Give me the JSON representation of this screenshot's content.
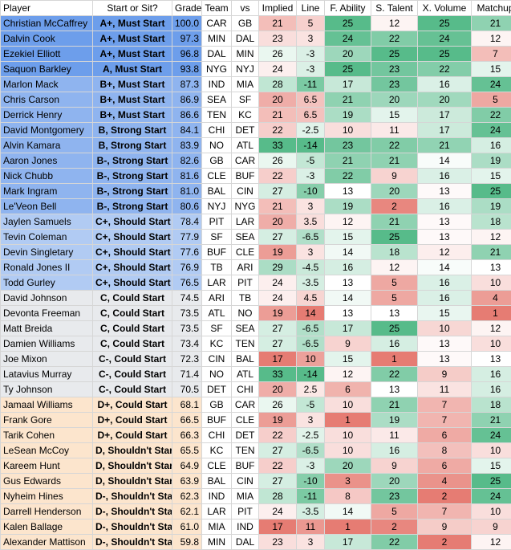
{
  "headers": [
    "Player",
    "Start or Sit?",
    "Grade",
    "Team",
    "vs",
    "Implied",
    "Line",
    "F. Ability",
    "S. Talent",
    "X. Volume",
    "Matchup"
  ],
  "tiers": {
    "A": "#6d9eeb",
    "B": "#8fb4ef",
    "C+": "#b1cbf3",
    "C": "#e8eaed",
    "D": "#fce5cd"
  },
  "rows": [
    [
      "Christian McCaffrey",
      "A+, Must Start",
      "100.0",
      "CAR",
      "GB",
      "21",
      "5",
      "25",
      "12",
      "25",
      "21"
    ],
    [
      "Dalvin Cook",
      "A+, Must Start",
      "97.3",
      "MIN",
      "DAL",
      "23",
      "3",
      "24",
      "22",
      "24",
      "12"
    ],
    [
      "Ezekiel Elliott",
      "A+, Must Start",
      "96.8",
      "DAL",
      "MIN",
      "26",
      "-3",
      "20",
      "25",
      "25",
      "7"
    ],
    [
      "Saquon Barkley",
      "A, Must Start",
      "93.8",
      "NYG",
      "NYJ",
      "24",
      "-3",
      "25",
      "23",
      "22",
      "15"
    ],
    [
      "Marlon Mack",
      "B+, Must Start",
      "87.3",
      "IND",
      "MIA",
      "28",
      "-11",
      "17",
      "23",
      "16",
      "24"
    ],
    [
      "Chris Carson",
      "B+, Must Start",
      "86.9",
      "SEA",
      "SF",
      "20",
      "6.5",
      "21",
      "20",
      "20",
      "5"
    ],
    [
      "Derrick Henry",
      "B+, Must Start",
      "86.6",
      "TEN",
      "KC",
      "21",
      "6.5",
      "19",
      "15",
      "17",
      "22"
    ],
    [
      "David Montgomery",
      "B, Strong Start",
      "84.1",
      "CHI",
      "DET",
      "22",
      "-2.5",
      "10",
      "11",
      "17",
      "24"
    ],
    [
      "Alvin Kamara",
      "B, Strong Start",
      "83.9",
      "NO",
      "ATL",
      "33",
      "-14",
      "23",
      "22",
      "21",
      "16"
    ],
    [
      "Aaron Jones",
      "B-, Strong Start",
      "82.6",
      "GB",
      "CAR",
      "26",
      "-5",
      "21",
      "21",
      "14",
      "19"
    ],
    [
      "Nick Chubb",
      "B-, Strong Start",
      "81.6",
      "CLE",
      "BUF",
      "22",
      "-3",
      "22",
      "9",
      "16",
      "15"
    ],
    [
      "Mark Ingram",
      "B-, Strong Start",
      "81.0",
      "BAL",
      "CIN",
      "27",
      "-10",
      "13",
      "20",
      "13",
      "25"
    ],
    [
      "Le'Veon Bell",
      "B-, Strong Start",
      "80.6",
      "NYJ",
      "NYG",
      "21",
      "3",
      "19",
      "2",
      "16",
      "19"
    ],
    [
      "Jaylen Samuels",
      "C+, Should Start",
      "78.4",
      "PIT",
      "LAR",
      "20",
      "3.5",
      "12",
      "21",
      "13",
      "18"
    ],
    [
      "Tevin Coleman",
      "C+, Should Start",
      "77.9",
      "SF",
      "SEA",
      "27",
      "-6.5",
      "15",
      "25",
      "13",
      "12"
    ],
    [
      "Devin Singletary",
      "C+, Should Start",
      "77.6",
      "BUF",
      "CLE",
      "19",
      "3",
      "14",
      "18",
      "12",
      "21"
    ],
    [
      "Ronald Jones II",
      "C+, Should Start",
      "76.9",
      "TB",
      "ARI",
      "29",
      "-4.5",
      "16",
      "12",
      "14",
      "13"
    ],
    [
      "Todd Gurley",
      "C+, Should Start",
      "76.5",
      "LAR",
      "PIT",
      "24",
      "-3.5",
      "13",
      "5",
      "16",
      "10"
    ],
    [
      "David Johnson",
      "C, Could Start",
      "74.5",
      "ARI",
      "TB",
      "24",
      "4.5",
      "14",
      "5",
      "16",
      "4"
    ],
    [
      "Devonta Freeman",
      "C, Could Start",
      "73.5",
      "ATL",
      "NO",
      "19",
      "14",
      "13",
      "13",
      "15",
      "1"
    ],
    [
      "Matt Breida",
      "C, Could Start",
      "73.5",
      "SF",
      "SEA",
      "27",
      "-6.5",
      "17",
      "25",
      "10",
      "12"
    ],
    [
      "Damien Williams",
      "C, Could Start",
      "73.4",
      "KC",
      "TEN",
      "27",
      "-6.5",
      "9",
      "16",
      "13",
      "10"
    ],
    [
      "Joe Mixon",
      "C-, Could Start",
      "72.3",
      "CIN",
      "BAL",
      "17",
      "10",
      "15",
      "1",
      "13",
      "13"
    ],
    [
      "Latavius Murray",
      "C-, Could Start",
      "71.4",
      "NO",
      "ATL",
      "33",
      "-14",
      "12",
      "22",
      "9",
      "16"
    ],
    [
      "Ty Johnson",
      "C-, Could Start",
      "70.5",
      "DET",
      "CHI",
      "20",
      "2.5",
      "6",
      "13",
      "11",
      "16"
    ],
    [
      "Jamaal Williams",
      "D+, Could Start",
      "68.1",
      "GB",
      "CAR",
      "26",
      "-5",
      "10",
      "21",
      "7",
      "18"
    ],
    [
      "Frank Gore",
      "D+, Could Start",
      "66.5",
      "BUF",
      "CLE",
      "19",
      "3",
      "1",
      "19",
      "7",
      "21"
    ],
    [
      "Tarik Cohen",
      "D+, Could Start",
      "66.3",
      "CHI",
      "DET",
      "22",
      "-2.5",
      "10",
      "11",
      "6",
      "24"
    ],
    [
      "LeSean McCoy",
      "D, Shouldn't Start",
      "65.5",
      "KC",
      "TEN",
      "27",
      "-6.5",
      "10",
      "16",
      "8",
      "10"
    ],
    [
      "Kareem Hunt",
      "D, Shouldn't Start",
      "64.9",
      "CLE",
      "BUF",
      "22",
      "-3",
      "20",
      "9",
      "6",
      "15"
    ],
    [
      "Gus Edwards",
      "D, Shouldn't Start",
      "63.9",
      "BAL",
      "CIN",
      "27",
      "-10",
      "3",
      "20",
      "4",
      "25"
    ],
    [
      "Nyheim Hines",
      "D-, Shouldn't Start",
      "62.3",
      "IND",
      "MIA",
      "28",
      "-11",
      "8",
      "23",
      "2",
      "24"
    ],
    [
      "Darrell Henderson",
      "D-, Shouldn't Start",
      "62.1",
      "LAR",
      "PIT",
      "24",
      "-3.5",
      "14",
      "5",
      "7",
      "10"
    ],
    [
      "Kalen Ballage",
      "D-, Shouldn't Start",
      "61.0",
      "MIA",
      "IND",
      "17",
      "11",
      "1",
      "2",
      "9",
      "9"
    ],
    [
      "Alexander Mattison",
      "D-, Shouldn't Start",
      "59.8",
      "MIN",
      "DAL",
      "23",
      "3",
      "17",
      "22",
      "2",
      "12"
    ]
  ]
}
